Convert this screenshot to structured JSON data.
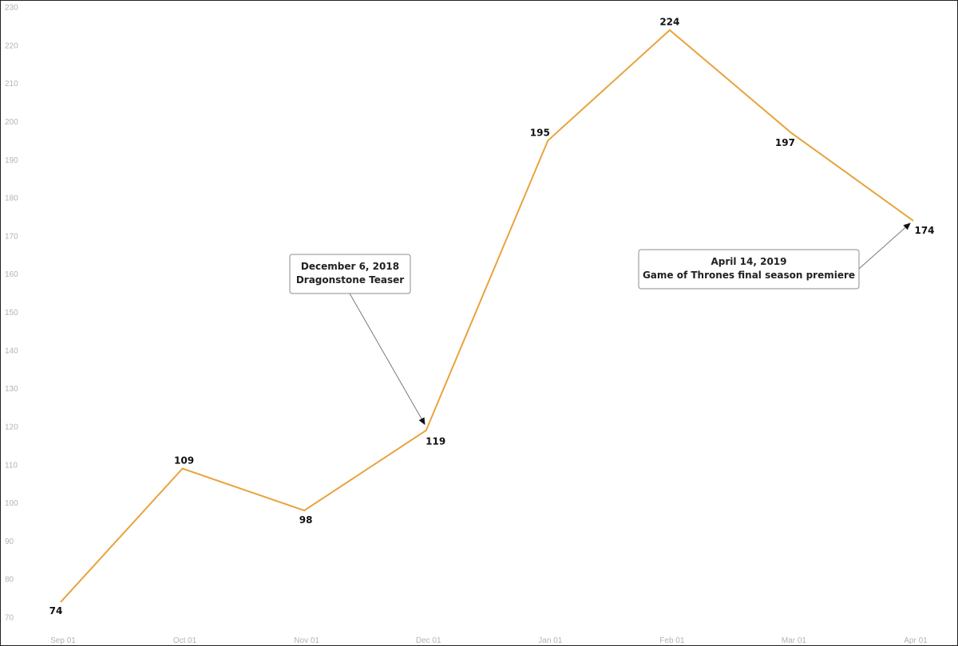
{
  "chart_data": {
    "type": "line",
    "title": "",
    "xlabel": "",
    "ylabel": "",
    "categories": [
      "Sep 01",
      "Oct 01",
      "Nov 01",
      "Dec 01",
      "Jan 01",
      "Feb 01",
      "Mar 01",
      "Apr 01"
    ],
    "values": [
      74,
      109,
      98,
      119,
      195,
      224,
      197,
      174
    ],
    "data_labels": [
      "74",
      "109",
      "98",
      "119",
      "195",
      "224",
      "197",
      "174"
    ],
    "ylim": [
      70,
      230
    ],
    "yticks": [
      "70",
      "80",
      "90",
      "100",
      "110",
      "120",
      "130",
      "140",
      "150",
      "160",
      "170",
      "180",
      "190",
      "200",
      "210",
      "220",
      "230"
    ],
    "grid": false,
    "legend": "none",
    "line_color": "#e8a33c",
    "annotations": [
      {
        "lines": [
          "December 6, 2018",
          "Dragonstone Teaser"
        ],
        "points_to_category": "Dec 01"
      },
      {
        "lines": [
          "April 14, 2019",
          "Game of Thrones final season premiere"
        ],
        "points_to_category": "Apr 01"
      }
    ]
  }
}
